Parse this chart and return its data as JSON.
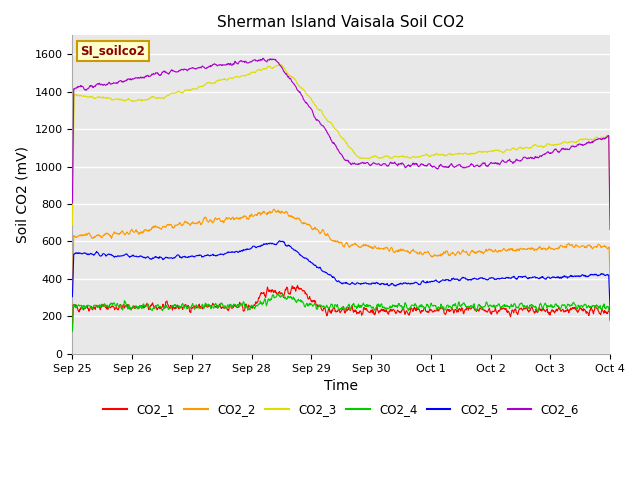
{
  "title": "Sherman Island Vaisala Soil CO2",
  "xlabel": "Time",
  "ylabel": "Soil CO2 (mV)",
  "legend_label": "SI_soilco2",
  "series_names": [
    "CO2_1",
    "CO2_2",
    "CO2_3",
    "CO2_4",
    "CO2_5",
    "CO2_6"
  ],
  "series_colors": [
    "#ff0000",
    "#ff9900",
    "#dddd00",
    "#00cc00",
    "#0000ff",
    "#aa00cc"
  ],
  "xlim_days": [
    0,
    9
  ],
  "ylim": [
    0,
    1700
  ],
  "yticks": [
    0,
    200,
    400,
    600,
    800,
    1000,
    1200,
    1400,
    1600
  ],
  "xtick_labels": [
    "Sep 25",
    "Sep 26",
    "Sep 27",
    "Sep 28",
    "Sep 29",
    "Sep 30",
    "Oct 1",
    "Oct 2",
    "Oct 3",
    "Oct 4"
  ],
  "background_color": "#ffffff",
  "plot_bg_color": "#e8e8e8",
  "title_fontsize": 11,
  "axis_label_fontsize": 10,
  "tick_fontsize": 8,
  "legend_box_color": "#ffffcc",
  "legend_box_border": "#cc9900",
  "n_points": 1200,
  "seed": 42
}
